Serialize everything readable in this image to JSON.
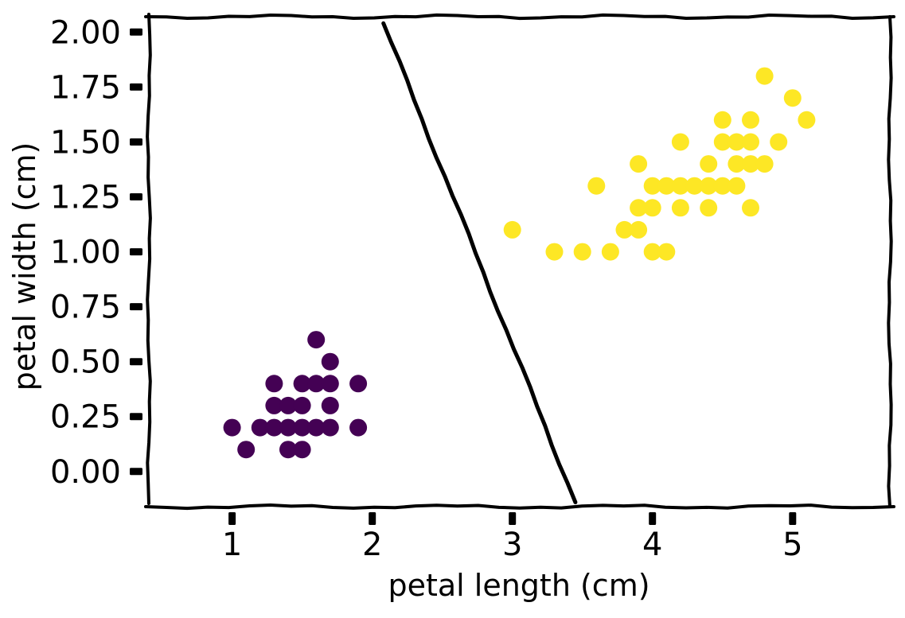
{
  "figure": {
    "background_color": "#ffffff",
    "text_color": "#000000",
    "style": "xkcd-sketch"
  },
  "chart_data": {
    "type": "scatter",
    "title": "",
    "xlabel": "petal length (cm)",
    "ylabel": "petal width (cm)",
    "xlim": [
      0.4,
      5.7
    ],
    "ylim": [
      -0.16,
      2.07
    ],
    "grid": false,
    "legend": null,
    "xticks": {
      "values": [
        1,
        2,
        3,
        4,
        5
      ],
      "labels": [
        "1",
        "2",
        "3",
        "4",
        "5"
      ]
    },
    "yticks": {
      "values": [
        0.0,
        0.25,
        0.5,
        0.75,
        1.0,
        1.25,
        1.5,
        1.75,
        2.0
      ],
      "labels": [
        "0.00",
        "0.25",
        "0.50",
        "0.75",
        "1.00",
        "1.25",
        "1.50",
        "1.75",
        "2.00"
      ]
    },
    "series": [
      {
        "name": "purple-cluster",
        "color": "#440154",
        "marker": "circle",
        "marker_radius": 11,
        "points": [
          [
            1.0,
            0.2
          ],
          [
            1.1,
            0.1
          ],
          [
            1.2,
            0.2
          ],
          [
            1.3,
            0.2
          ],
          [
            1.3,
            0.3
          ],
          [
            1.3,
            0.4
          ],
          [
            1.4,
            0.1
          ],
          [
            1.4,
            0.2
          ],
          [
            1.4,
            0.3
          ],
          [
            1.5,
            0.1
          ],
          [
            1.5,
            0.2
          ],
          [
            1.5,
            0.3
          ],
          [
            1.5,
            0.4
          ],
          [
            1.6,
            0.2
          ],
          [
            1.6,
            0.4
          ],
          [
            1.6,
            0.6
          ],
          [
            1.7,
            0.2
          ],
          [
            1.7,
            0.3
          ],
          [
            1.7,
            0.4
          ],
          [
            1.7,
            0.5
          ],
          [
            1.9,
            0.2
          ],
          [
            1.9,
            0.4
          ]
        ]
      },
      {
        "name": "yellow-cluster",
        "color": "#fde725",
        "marker": "circle",
        "marker_radius": 11,
        "points": [
          [
            3.0,
            1.1
          ],
          [
            3.3,
            1.0
          ],
          [
            3.5,
            1.0
          ],
          [
            3.6,
            1.3
          ],
          [
            3.7,
            1.0
          ],
          [
            3.8,
            1.1
          ],
          [
            3.9,
            1.1
          ],
          [
            3.9,
            1.2
          ],
          [
            3.9,
            1.4
          ],
          [
            4.0,
            1.0
          ],
          [
            4.0,
            1.2
          ],
          [
            4.0,
            1.3
          ],
          [
            4.1,
            1.0
          ],
          [
            4.1,
            1.3
          ],
          [
            4.2,
            1.2
          ],
          [
            4.2,
            1.3
          ],
          [
            4.2,
            1.5
          ],
          [
            4.3,
            1.3
          ],
          [
            4.4,
            1.2
          ],
          [
            4.4,
            1.3
          ],
          [
            4.4,
            1.4
          ],
          [
            4.5,
            1.3
          ],
          [
            4.5,
            1.5
          ],
          [
            4.5,
            1.6
          ],
          [
            4.6,
            1.3
          ],
          [
            4.6,
            1.4
          ],
          [
            4.6,
            1.5
          ],
          [
            4.7,
            1.2
          ],
          [
            4.7,
            1.4
          ],
          [
            4.7,
            1.5
          ],
          [
            4.7,
            1.6
          ],
          [
            4.8,
            1.4
          ],
          [
            4.8,
            1.8
          ],
          [
            4.9,
            1.5
          ],
          [
            5.0,
            1.7
          ],
          [
            5.1,
            1.6
          ]
        ]
      }
    ],
    "boundary_line": {
      "color": "#000000",
      "width": 5,
      "points_xy": [
        [
          2.08,
          2.04
        ],
        [
          3.45,
          -0.14
        ]
      ]
    },
    "axis_color": "#000000",
    "tick_color": "#000000"
  }
}
